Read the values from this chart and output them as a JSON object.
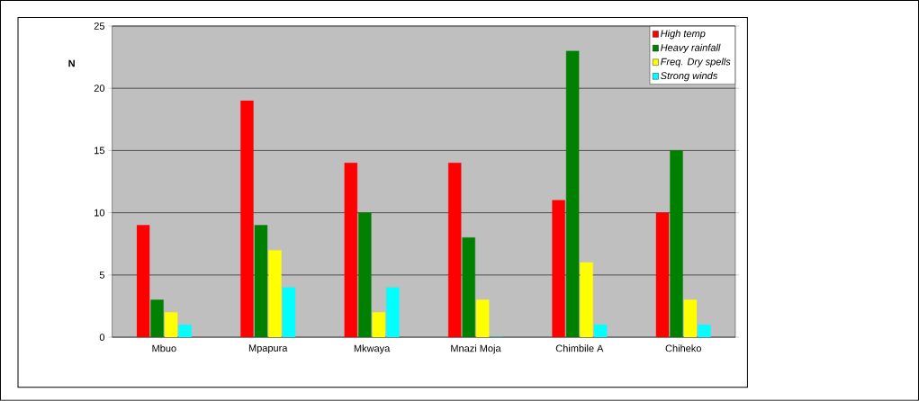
{
  "chart_data": {
    "type": "bar",
    "ylabel": "N",
    "categories": [
      "Mbuo",
      "Mpapura",
      "Mkwaya",
      "Mnazi Moja",
      "Chimbile A",
      "Chiheko"
    ],
    "series": [
      {
        "name": "High temp",
        "color": "#ff0000",
        "values": [
          9,
          19,
          14,
          14,
          11,
          10
        ]
      },
      {
        "name": "Heavy rainfall",
        "color": "#008000",
        "values": [
          3,
          9,
          10,
          8,
          23,
          15
        ]
      },
      {
        "name": "Freq. Dry spells",
        "color": "#ffff00",
        "values": [
          2,
          7,
          2,
          3,
          6,
          3
        ]
      },
      {
        "name": "Strong winds",
        "color": "#00ffff",
        "values": [
          1,
          4,
          4,
          0,
          1,
          1
        ]
      }
    ],
    "ylim": [
      0,
      25
    ],
    "yticks": [
      0,
      5,
      10,
      15,
      20,
      25
    ],
    "grid": "y",
    "legend": "top right"
  }
}
